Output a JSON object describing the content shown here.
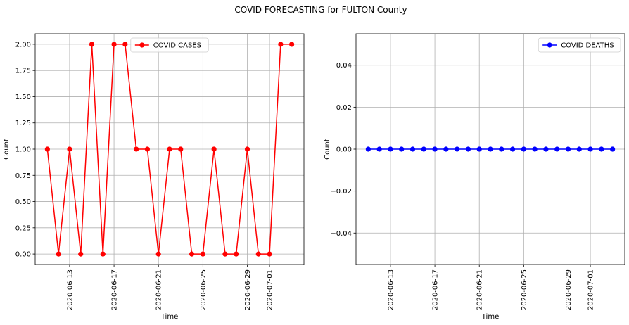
{
  "figure_title": "COVID FORECASTING for FULTON County",
  "chart_data": [
    {
      "type": "line",
      "title": "",
      "xlabel": "Time",
      "ylabel": "Count",
      "x": [
        "2020-06-11",
        "2020-06-12",
        "2020-06-13",
        "2020-06-14",
        "2020-06-15",
        "2020-06-16",
        "2020-06-17",
        "2020-06-18",
        "2020-06-19",
        "2020-06-20",
        "2020-06-21",
        "2020-06-22",
        "2020-06-23",
        "2020-06-24",
        "2020-06-25",
        "2020-06-26",
        "2020-06-27",
        "2020-06-28",
        "2020-06-29",
        "2020-06-30",
        "2020-07-01",
        "2020-07-02",
        "2020-07-03"
      ],
      "series": [
        {
          "name": "COVID CASES",
          "color": "#ff0000",
          "marker": "circle",
          "values": [
            1,
            0,
            1,
            0,
            2,
            0,
            2,
            2,
            1,
            1,
            0,
            1,
            1,
            0,
            0,
            1,
            0,
            0,
            1,
            0,
            0,
            2,
            2
          ]
        }
      ],
      "xticks": [
        "2020-06-13",
        "2020-06-17",
        "2020-06-21",
        "2020-06-25",
        "2020-06-29",
        "2020-07-01"
      ],
      "yticks": [
        "0.00",
        "0.25",
        "0.50",
        "0.75",
        "1.00",
        "1.25",
        "1.50",
        "1.75",
        "2.00"
      ],
      "ylim": [
        -0.1,
        2.1
      ],
      "grid": true,
      "legend": "upper center"
    },
    {
      "type": "line",
      "title": "",
      "xlabel": "Time",
      "ylabel": "Count",
      "x": [
        "2020-06-11",
        "2020-06-12",
        "2020-06-13",
        "2020-06-14",
        "2020-06-15",
        "2020-06-16",
        "2020-06-17",
        "2020-06-18",
        "2020-06-19",
        "2020-06-20",
        "2020-06-21",
        "2020-06-22",
        "2020-06-23",
        "2020-06-24",
        "2020-06-25",
        "2020-06-26",
        "2020-06-27",
        "2020-06-28",
        "2020-06-29",
        "2020-06-30",
        "2020-07-01",
        "2020-07-02",
        "2020-07-03"
      ],
      "series": [
        {
          "name": "COVID DEATHS",
          "color": "#0000ff",
          "marker": "circle",
          "values": [
            0,
            0,
            0,
            0,
            0,
            0,
            0,
            0,
            0,
            0,
            0,
            0,
            0,
            0,
            0,
            0,
            0,
            0,
            0,
            0,
            0,
            0,
            0
          ]
        }
      ],
      "xticks": [
        "2020-06-13",
        "2020-06-17",
        "2020-06-21",
        "2020-06-25",
        "2020-06-29",
        "2020-07-01"
      ],
      "yticks": [
        "−0.04",
        "−0.02",
        "0.00",
        "0.02",
        "0.04"
      ],
      "ylim": [
        -0.055,
        0.055
      ],
      "grid": true,
      "legend": "upper right"
    }
  ]
}
